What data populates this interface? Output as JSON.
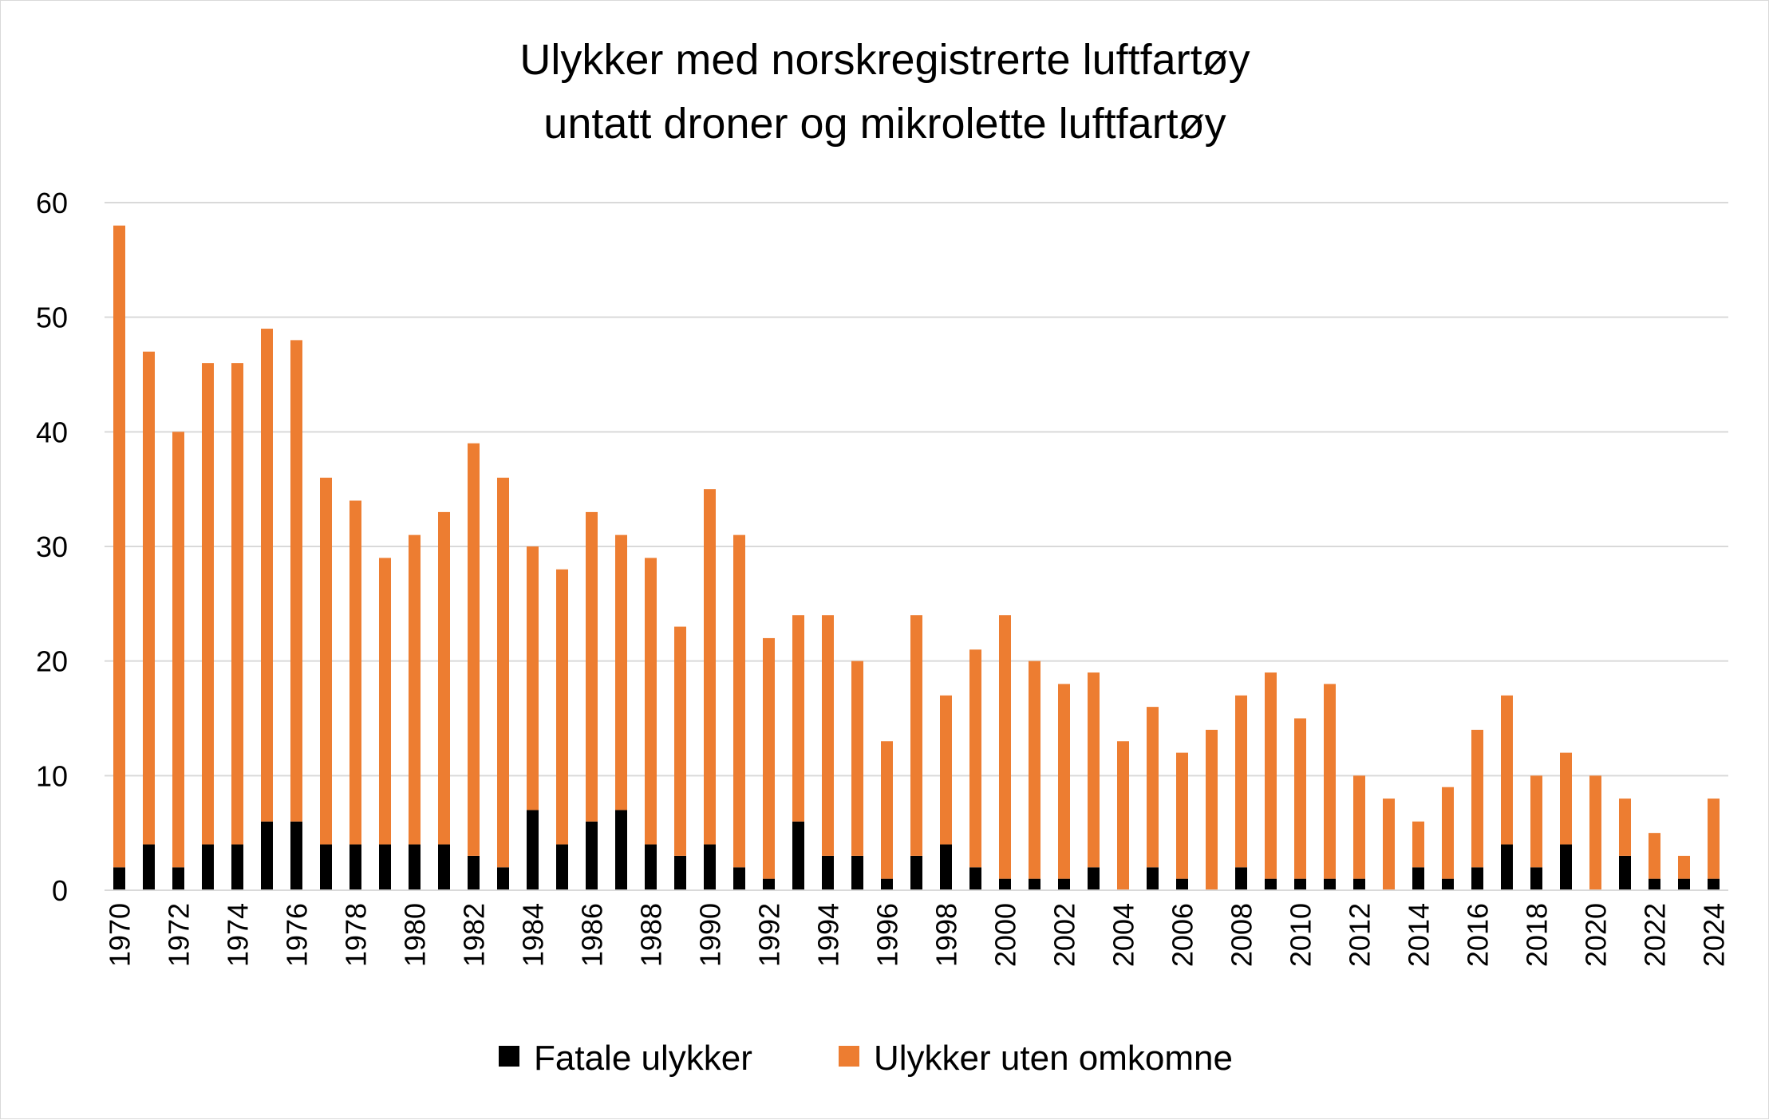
{
  "chart_data": {
    "type": "bar",
    "stacked": true,
    "title": [
      "Ulykker med norskregistrerte luftfartøy",
      "untatt droner og mikrolette luftfartøy"
    ],
    "xlabel": "",
    "ylabel": "",
    "ylim": [
      0,
      60
    ],
    "yticks": [
      0,
      10,
      20,
      30,
      40,
      50,
      60
    ],
    "grid": true,
    "legend_position": "bottom",
    "categories": [
      1970,
      1971,
      1972,
      1973,
      1974,
      1975,
      1976,
      1977,
      1978,
      1979,
      1980,
      1981,
      1982,
      1983,
      1984,
      1985,
      1986,
      1987,
      1988,
      1989,
      1990,
      1991,
      1992,
      1993,
      1994,
      1995,
      1996,
      1997,
      1998,
      1999,
      2000,
      2001,
      2002,
      2003,
      2004,
      2005,
      2006,
      2007,
      2008,
      2009,
      2010,
      2011,
      2012,
      2013,
      2014,
      2015,
      2016,
      2017,
      2018,
      2019,
      2020,
      2021,
      2022,
      2023,
      2024
    ],
    "x_tick_labels": [
      1970,
      1972,
      1974,
      1976,
      1978,
      1980,
      1982,
      1984,
      1986,
      1988,
      1990,
      1992,
      1994,
      1996,
      1998,
      2000,
      2002,
      2004,
      2006,
      2008,
      2010,
      2012,
      2014,
      2016,
      2018,
      2020,
      2022,
      2024
    ],
    "series": [
      {
        "name": "Fatale ulykker",
        "color": "#000000",
        "values": [
          2,
          4,
          2,
          4,
          4,
          6,
          6,
          4,
          4,
          4,
          4,
          4,
          3,
          2,
          7,
          4,
          6,
          7,
          4,
          3,
          4,
          2,
          1,
          6,
          3,
          3,
          1,
          3,
          4,
          2,
          1,
          1,
          1,
          2,
          0,
          2,
          1,
          0,
          2,
          1,
          1,
          1,
          1,
          0,
          2,
          1,
          2,
          4,
          2,
          4,
          0,
          3,
          1,
          1,
          1
        ]
      },
      {
        "name": "Ulykker uten omkomne",
        "color": "#ED7D31",
        "values": [
          56,
          43,
          38,
          42,
          42,
          43,
          42,
          32,
          30,
          25,
          27,
          29,
          36,
          34,
          23,
          24,
          27,
          24,
          25,
          20,
          31,
          29,
          21,
          18,
          21,
          17,
          12,
          21,
          13,
          19,
          23,
          19,
          17,
          17,
          13,
          14,
          11,
          14,
          15,
          18,
          14,
          17,
          9,
          8,
          4,
          8,
          12,
          13,
          8,
          8,
          10,
          5,
          4,
          2,
          7
        ]
      }
    ]
  }
}
